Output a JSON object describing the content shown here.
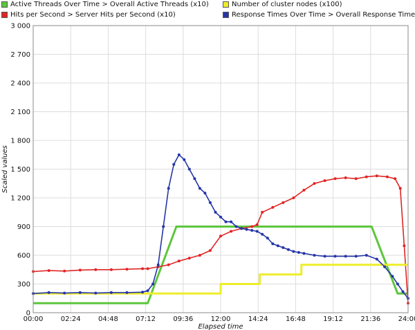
{
  "chart_data": {
    "type": "line",
    "title": "",
    "xlabel": "Elapsed time",
    "ylabel": "Scaled values",
    "xlim_minutes": [
      0,
      1440
    ],
    "ylim": [
      0,
      3000
    ],
    "grid": true,
    "legend_position": "top",
    "y_ticks": [
      {
        "value": 0,
        "label": "0"
      },
      {
        "value": 300,
        "label": "300"
      },
      {
        "value": 600,
        "label": "600"
      },
      {
        "value": 900,
        "label": "900"
      },
      {
        "value": 1200,
        "label": "1 200"
      },
      {
        "value": 1500,
        "label": "1 500"
      },
      {
        "value": 1800,
        "label": "1 800"
      },
      {
        "value": 2100,
        "label": "2 100"
      },
      {
        "value": 2400,
        "label": "2 400"
      },
      {
        "value": 2700,
        "label": "2 700"
      },
      {
        "value": 3000,
        "label": "3 000"
      }
    ],
    "x_ticks": [
      {
        "value": 0,
        "label": "00:00"
      },
      {
        "value": 144,
        "label": "02:24"
      },
      {
        "value": 288,
        "label": "04:48"
      },
      {
        "value": 432,
        "label": "07:12"
      },
      {
        "value": 576,
        "label": "09:36"
      },
      {
        "value": 720,
        "label": "12:00"
      },
      {
        "value": 864,
        "label": "14:24"
      },
      {
        "value": 1008,
        "label": "16:48"
      },
      {
        "value": 1152,
        "label": "19:12"
      },
      {
        "value": 1296,
        "label": "21:36"
      },
      {
        "value": 1440,
        "label": "24:00"
      }
    ],
    "series": [
      {
        "name": "Active Threads Over Time > Overall Active Threads (x10)",
        "color": "#5cc63c",
        "markers": false,
        "x": [
          0,
          440,
          550,
          1300,
          1400,
          1440
        ],
        "y": [
          100,
          100,
          900,
          900,
          200,
          200
        ]
      },
      {
        "name": "Hits per Second > Server Hits per Second (x10)",
        "color": "#e02525",
        "markers": true,
        "x": [
          0,
          60,
          120,
          180,
          240,
          300,
          360,
          420,
          440,
          480,
          520,
          560,
          600,
          640,
          680,
          720,
          760,
          800,
          840,
          860,
          880,
          920,
          960,
          1000,
          1040,
          1080,
          1120,
          1160,
          1200,
          1240,
          1280,
          1320,
          1360,
          1390,
          1410,
          1425,
          1440
        ],
        "y": [
          430,
          440,
          435,
          445,
          450,
          450,
          455,
          460,
          460,
          480,
          500,
          540,
          570,
          600,
          650,
          800,
          850,
          880,
          900,
          920,
          1050,
          1100,
          1150,
          1200,
          1280,
          1350,
          1380,
          1400,
          1410,
          1400,
          1420,
          1430,
          1420,
          1400,
          1300,
          700,
          100
        ]
      },
      {
        "name": "Number of cluster nodes (x100)",
        "color": "#eded2a",
        "markers": false,
        "x": [
          0,
          720,
          720,
          870,
          870,
          1030,
          1030,
          1440
        ],
        "y": [
          200,
          200,
          300,
          300,
          400,
          400,
          500,
          500
        ]
      },
      {
        "name": "Response Times Over Time > Overall Response Times",
        "color": "#2535a8",
        "markers": true,
        "x": [
          0,
          60,
          120,
          180,
          240,
          300,
          360,
          420,
          440,
          460,
          480,
          500,
          520,
          540,
          560,
          580,
          600,
          620,
          640,
          660,
          680,
          700,
          720,
          740,
          760,
          780,
          800,
          820,
          840,
          860,
          880,
          900,
          920,
          940,
          960,
          980,
          1000,
          1020,
          1040,
          1080,
          1120,
          1160,
          1200,
          1240,
          1280,
          1320,
          1350,
          1380,
          1400,
          1420,
          1440
        ],
        "y": [
          200,
          210,
          205,
          210,
          205,
          210,
          210,
          215,
          230,
          300,
          500,
          900,
          1300,
          1550,
          1650,
          1600,
          1500,
          1400,
          1300,
          1250,
          1150,
          1050,
          1000,
          950,
          950,
          900,
          880,
          870,
          860,
          850,
          820,
          780,
          720,
          700,
          680,
          660,
          640,
          630,
          620,
          600,
          590,
          590,
          590,
          590,
          600,
          560,
          480,
          380,
          300,
          220,
          150
        ]
      }
    ]
  }
}
